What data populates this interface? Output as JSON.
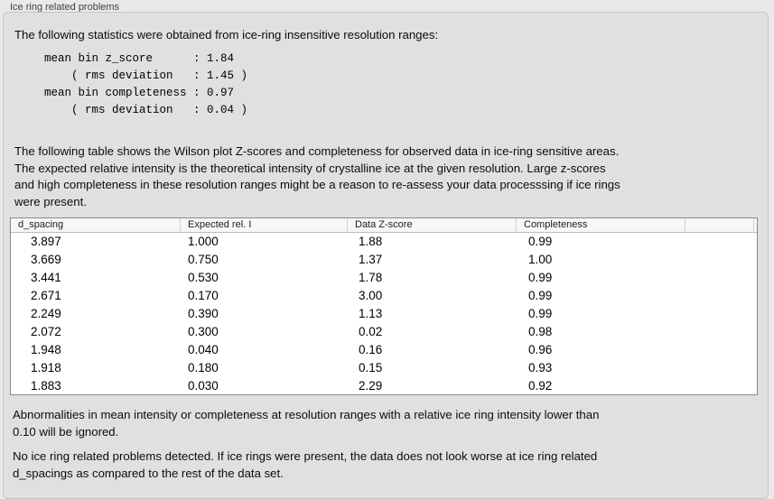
{
  "window": {
    "title": "Ice ring related problems"
  },
  "panel": {
    "intro": "The following statistics were obtained from ice-ring insensitive resolution ranges:",
    "stats_block": "mean bin z_score      : 1.84\n    ( rms deviation   : 1.45 )\nmean bin completeness : 0.97\n    ( rms deviation   : 0.04 )",
    "stats": {
      "mean_bin_z_score": "1.84",
      "z_score_rms_deviation": "1.45",
      "mean_bin_completeness": "0.97",
      "completeness_rms_deviation": "0.04"
    },
    "table_intro": "The following table shows the Wilson plot Z-scores and completeness for observed data in ice-ring sensitive areas.\nThe expected relative intensity is the theoretical intensity of crystalline ice at the given resolution. Large z-scores\nand high completeness in these resolution ranges might be a reason to re-assess your data processsing if ice rings\nwere present.",
    "table": {
      "columns": [
        "d_spacing",
        "Expected rel. I",
        "Data Z-score",
        "Completeness"
      ],
      "rows": [
        [
          "3.897",
          "1.000",
          "1.88",
          "0.99"
        ],
        [
          "3.669",
          "0.750",
          "1.37",
          "1.00"
        ],
        [
          "3.441",
          "0.530",
          "1.78",
          "0.99"
        ],
        [
          "2.671",
          "0.170",
          "3.00",
          "0.99"
        ],
        [
          "2.249",
          "0.390",
          "1.13",
          "0.99"
        ],
        [
          "2.072",
          "0.300",
          "0.02",
          "0.98"
        ],
        [
          "1.948",
          "0.040",
          "0.16",
          "0.96"
        ],
        [
          "1.918",
          "0.180",
          "0.15",
          "0.93"
        ],
        [
          "1.883",
          "0.030",
          "2.29",
          "0.92"
        ]
      ]
    },
    "note_ignore": "Abnormalities in mean intensity or completeness at resolution ranges with a relative ice ring intensity lower than\n0.10 will be ignored.",
    "conclusion": "No ice ring related problems detected. If ice rings were present, the data does not look worse at ice ring related\nd_spacings as compared to the rest of the data set."
  },
  "colors": {
    "page_bg": "#e9e9e9",
    "box_bg": "#e0e0e0",
    "box_border": "#c6c6c6",
    "table_bg": "#ffffff",
    "table_border": "#8a8a8a",
    "table_header_bg": "#f7f7f7",
    "text": "#0c0c0c"
  }
}
